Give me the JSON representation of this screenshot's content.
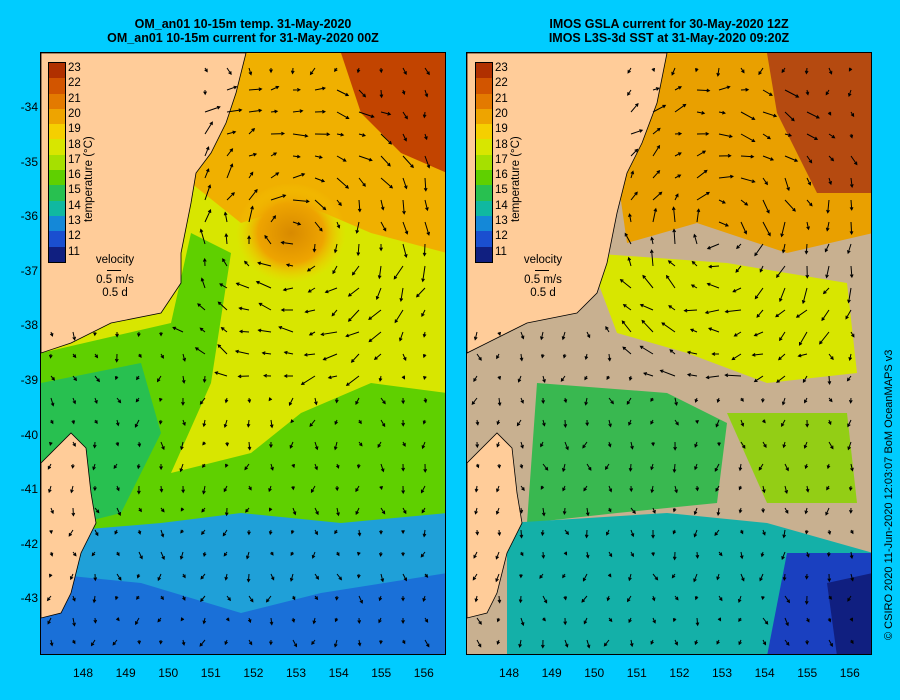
{
  "left_panel": {
    "title_line1": "OM_an01 10-15m temp. 31-May-2020",
    "title_line2": "OM_an01 10-15m current for 31-May-2020 00Z"
  },
  "right_panel": {
    "title_line1": "IMOS GSLA current for 30-May-2020 12Z",
    "title_line2": "IMOS L3S-3d SST at 31-May-2020 09:20Z"
  },
  "lat_labels": [
    "-34",
    "-35",
    "-36",
    "-37",
    "-38",
    "-39",
    "-40",
    "-41",
    "-42",
    "-43"
  ],
  "lon_labels": [
    "148",
    "149",
    "150",
    "151",
    "152",
    "153",
    "154",
    "155",
    "156"
  ],
  "colorbar": {
    "label": "temperature (°C)",
    "ticks": [
      "23",
      "22",
      "21",
      "20",
      "19",
      "18",
      "17",
      "16",
      "15",
      "14",
      "13",
      "12",
      "11"
    ],
    "colors": [
      "#b03000",
      "#d25500",
      "#e37a00",
      "#eea400",
      "#f5cf00",
      "#d8e600",
      "#a6e000",
      "#5fd000",
      "#28c050",
      "#10b8a0",
      "#1488d8",
      "#1a4fd0",
      "#101f80"
    ]
  },
  "velocity_key": {
    "label": "velocity",
    "speed": "0.5 m/s",
    "duration": "0.5 d"
  },
  "credit": "© CSIRO 2020   11-Jun-2020 12:03:07 BoM OceanMAPS v3",
  "colors": {
    "background": "#00ccff",
    "land": "#ffcc99",
    "no_data": "#c8b090"
  }
}
